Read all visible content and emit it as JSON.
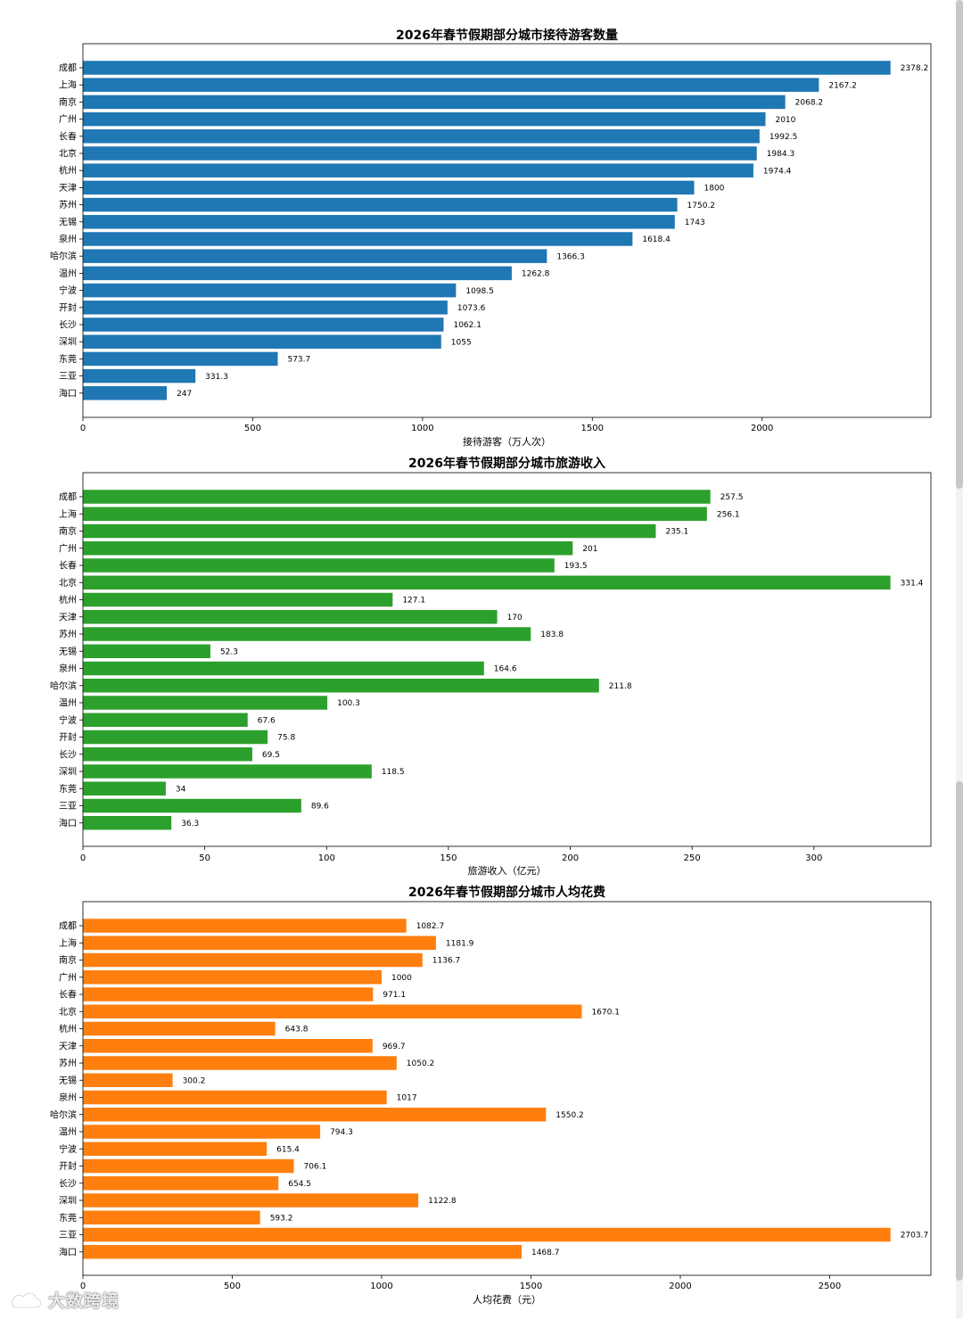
{
  "colors": {
    "chart1_bar": "#1f77b4",
    "chart2_bar": "#2ca02c",
    "chart3_bar": "#ff7f0e",
    "axis": "#000000",
    "background": "#ffffff"
  },
  "watermark": {
    "text": "大数跨境",
    "icon": "brand-logo-icon"
  },
  "chart_data": [
    {
      "type": "bar",
      "orientation": "horizontal",
      "title": "2026年春节假期部分城市接待游客数量",
      "xlabel": "接待游客（万人次）",
      "ylabel": "",
      "categories": [
        "成都",
        "上海",
        "南京",
        "广州",
        "长春",
        "北京",
        "杭州",
        "天津",
        "苏州",
        "无锡",
        "泉州",
        "哈尔滨",
        "温州",
        "宁波",
        "开封",
        "长沙",
        "深圳",
        "东莞",
        "三亚",
        "海口"
      ],
      "values": [
        2378.2,
        2167.2,
        2068.2,
        2010,
        1992.5,
        1984.3,
        1974.4,
        1800,
        1750.2,
        1743,
        1618.4,
        1366.3,
        1262.8,
        1098.5,
        1073.6,
        1062.1,
        1055,
        573.7,
        331.3,
        247
      ],
      "value_labels": [
        "2378.2",
        "2167.2",
        "2068.2",
        "2010",
        "1992.5",
        "1984.3",
        "1974.4",
        "1800",
        "1750.2",
        "1743",
        "1618.4",
        "1366.3",
        "1262.8",
        "1098.5",
        "1073.6",
        "1062.1",
        "1055",
        "573.7",
        "331.3",
        "247"
      ],
      "xticks": [
        0,
        500,
        1000,
        1500,
        2000
      ],
      "xticklabels": [
        "0",
        "500",
        "1000",
        "1500",
        "2000"
      ],
      "xlim": [
        0,
        2497.1
      ],
      "color": "#1f77b4",
      "grid": false,
      "legend": "none"
    },
    {
      "type": "bar",
      "orientation": "horizontal",
      "title": "2026年春节假期部分城市旅游收入",
      "xlabel": "旅游收入（亿元）",
      "ylabel": "",
      "categories": [
        "成都",
        "上海",
        "南京",
        "广州",
        "长春",
        "北京",
        "杭州",
        "天津",
        "苏州",
        "无锡",
        "泉州",
        "哈尔滨",
        "温州",
        "宁波",
        "开封",
        "长沙",
        "深圳",
        "东莞",
        "三亚",
        "海口"
      ],
      "values": [
        257.5,
        256.1,
        235.1,
        201,
        193.5,
        331.4,
        127.1,
        170,
        183.8,
        52.3,
        164.6,
        211.8,
        100.3,
        67.6,
        75.8,
        69.5,
        118.5,
        34,
        89.6,
        36.3
      ],
      "value_labels": [
        "257.5",
        "256.1",
        "235.1",
        "201",
        "193.5",
        "331.4",
        "127.1",
        "170",
        "183.8",
        "52.3",
        "164.6",
        "211.8",
        "100.3",
        "67.6",
        "75.8",
        "69.5",
        "118.5",
        "34",
        "89.6",
        "36.3"
      ],
      "xticks": [
        0,
        50,
        100,
        150,
        200,
        250,
        300
      ],
      "xticklabels": [
        "0",
        "50",
        "100",
        "150",
        "200",
        "250",
        "300"
      ],
      "xlim": [
        0,
        348
      ],
      "color": "#2ca02c",
      "grid": false,
      "legend": "none"
    },
    {
      "type": "bar",
      "orientation": "horizontal",
      "title": "2026年春节假期部分城市人均花费",
      "xlabel": "人均花费（元）",
      "ylabel": "",
      "categories": [
        "成都",
        "上海",
        "南京",
        "广州",
        "长春",
        "北京",
        "杭州",
        "天津",
        "苏州",
        "无锡",
        "泉州",
        "哈尔滨",
        "温州",
        "宁波",
        "开封",
        "长沙",
        "深圳",
        "东莞",
        "三亚",
        "海口"
      ],
      "values": [
        1082.7,
        1181.9,
        1136.7,
        1000,
        971.1,
        1670.1,
        643.8,
        969.7,
        1050.2,
        300.2,
        1017,
        1550.2,
        794.3,
        615.4,
        706.1,
        654.5,
        1122.8,
        593.2,
        2703.7,
        1468.7
      ],
      "value_labels": [
        "1082.7",
        "1181.9",
        "1136.7",
        "1000",
        "971.1",
        "1670.1",
        "643.8",
        "969.7",
        "1050.2",
        "300.2",
        "1017",
        "1550.2",
        "794.3",
        "615.4",
        "706.1",
        "654.5",
        "1122.8",
        "593.2",
        "2703.7",
        "1468.7"
      ],
      "xticks": [
        0,
        500,
        1000,
        1500,
        2000,
        2500
      ],
      "xticklabels": [
        "0",
        "500",
        "1000",
        "1500",
        "2000",
        "2500"
      ],
      "xlim": [
        0,
        2838.9
      ],
      "color": "#ff7f0e",
      "grid": false,
      "legend": "none"
    }
  ]
}
